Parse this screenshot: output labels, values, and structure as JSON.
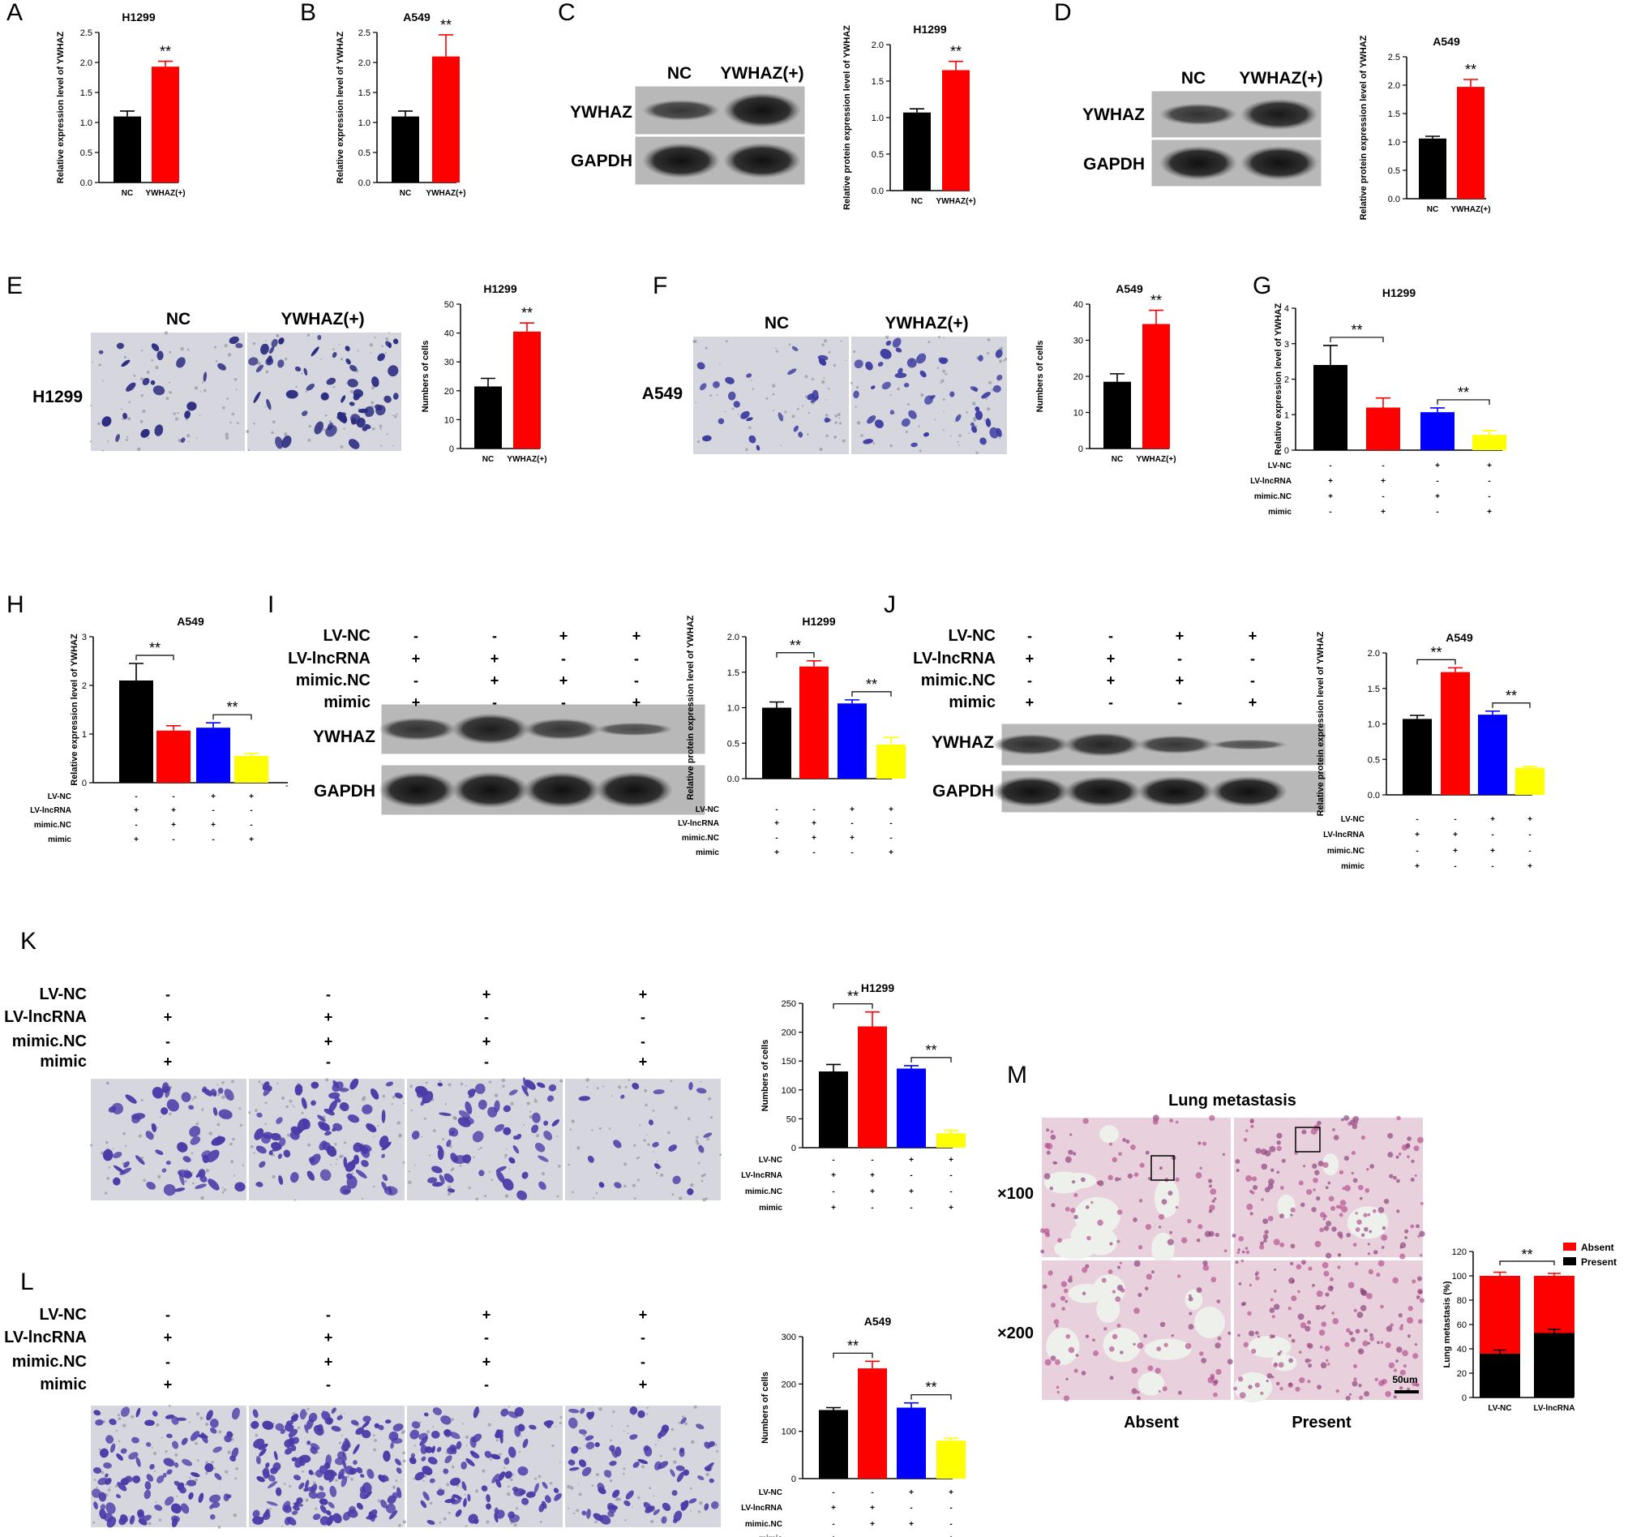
{
  "panels": {
    "A": "A",
    "B": "B",
    "C": "C",
    "D": "D",
    "E": "E",
    "F": "F",
    "G": "G",
    "H": "H",
    "I": "I",
    "J": "J",
    "K": "K",
    "L": "L",
    "M": "M"
  },
  "colors": {
    "NC": "#000000",
    "YWHAZ": "#ff0000",
    "g1": "#000000",
    "g2": "#ff0000",
    "g3": "#0000ff",
    "g4": "#ffff00",
    "absent": "#ff0000",
    "present": "#000000",
    "stain": "#4a3aa8",
    "histo": "#d98aa8"
  },
  "blots": {
    "C": {
      "cols": [
        "NC",
        "YWHAZ(+)"
      ],
      "rows": [
        "YWHAZ",
        "GAPDH"
      ]
    },
    "D": {
      "cols": [
        "NC",
        "YWHAZ(+)"
      ],
      "rows": [
        "YWHAZ",
        "GAPDH"
      ]
    },
    "I": {
      "rows": [
        "YWHAZ",
        "GAPDH"
      ],
      "stray": "-"
    },
    "J": {
      "rows": [
        "YWHAZ",
        "GAPDH"
      ]
    }
  },
  "images": {
    "E": {
      "cols": [
        "NC",
        "YWHAZ(+)"
      ],
      "row": "H1299"
    },
    "F": {
      "cols": [
        "NC",
        "YWHAZ(+)"
      ],
      "row": "A549"
    },
    "M": {
      "title": "Lung metastasis",
      "rows": [
        "×100",
        "×200"
      ],
      "cols": [
        "Absent",
        "Present"
      ],
      "scalebar": "50um"
    }
  },
  "conditions": {
    "labels": [
      "LV-NC",
      "LV-lncRNA",
      "mimic.NC",
      "mimic"
    ],
    "signs": [
      [
        "-",
        "-",
        "+",
        "+"
      ],
      [
        "+",
        "+",
        "-",
        "-"
      ],
      [
        "-",
        "+",
        "+",
        "-"
      ],
      [
        "+",
        "-",
        "-",
        "+"
      ]
    ],
    "signs_G": [
      [
        "-",
        "-",
        "+",
        "+"
      ],
      [
        "+",
        "+",
        "-",
        "-"
      ],
      [
        "+",
        "-",
        "+",
        "-"
      ],
      [
        "-",
        "+",
        "-",
        "+"
      ]
    ]
  },
  "chart_data": [
    {
      "id": "A",
      "type": "bar",
      "title": "H1299",
      "ylabel": "Relative expression level of YWHAZ",
      "categories": [
        "NC",
        "YWHAZ(+)"
      ],
      "values": [
        1.1,
        1.93
      ],
      "errors": [
        0.09,
        0.09
      ],
      "ylim": [
        0,
        2.5
      ],
      "yticks": [
        "0.0",
        "0.5",
        "1.0",
        "1.5",
        "2.0",
        "2.5"
      ],
      "annotation": "**"
    },
    {
      "id": "B",
      "type": "bar",
      "title": "A549",
      "ylabel": "Relative expression level of YWHAZ",
      "categories": [
        "NC",
        "YWHAZ(+)"
      ],
      "values": [
        1.1,
        2.1
      ],
      "errors": [
        0.09,
        0.36
      ],
      "ylim": [
        0,
        2.5
      ],
      "yticks": [
        "0.0",
        "0.5",
        "1.0",
        "1.5",
        "2.0",
        "2.5"
      ],
      "annotation": "**"
    },
    {
      "id": "C",
      "type": "bar",
      "title": "H1299",
      "ylabel": "Relative protein expression level of YWHAZ",
      "categories": [
        "NC",
        "YWHAZ(+)"
      ],
      "values": [
        1.07,
        1.65
      ],
      "errors": [
        0.05,
        0.12
      ],
      "ylim": [
        0,
        2.0
      ],
      "yticks": [
        "0.0",
        "0.5",
        "1.0",
        "1.5",
        "2.0"
      ],
      "annotation": "**"
    },
    {
      "id": "D",
      "type": "bar",
      "title": "A549",
      "ylabel": "Relative protein expression level of YWHAZ",
      "categories": [
        "NC",
        "YWHAZ(+)"
      ],
      "values": [
        1.06,
        1.97
      ],
      "errors": [
        0.04,
        0.13
      ],
      "ylim": [
        0,
        2.5
      ],
      "yticks": [
        "0.0",
        "0.5",
        "1.0",
        "1.5",
        "2.0",
        "2.5"
      ],
      "annotation": "**"
    },
    {
      "id": "E",
      "type": "bar",
      "title": "H1299",
      "ylabel": "Numbers of cells",
      "categories": [
        "NC",
        "YWHAZ(+)"
      ],
      "values": [
        21.5,
        40.5
      ],
      "errors": [
        2.8,
        3.0
      ],
      "ylim": [
        0,
        50
      ],
      "yticks": [
        "0",
        "10",
        "20",
        "30",
        "40",
        "50"
      ],
      "annotation": "**"
    },
    {
      "id": "F",
      "type": "bar",
      "title": "A549",
      "ylabel": "Numbers of cells",
      "categories": [
        "NC",
        "YWHAZ(+)"
      ],
      "values": [
        18.5,
        34.5
      ],
      "errors": [
        2.2,
        3.8
      ],
      "ylim": [
        0,
        40
      ],
      "yticks": [
        "0",
        "10",
        "20",
        "30",
        "40"
      ],
      "annotation": "**"
    },
    {
      "id": "G",
      "type": "bar",
      "title": "H1299",
      "ylabel": "Relative expression level of YWHAZ",
      "values": [
        2.4,
        1.2,
        1.07,
        0.43
      ],
      "errors": [
        0.55,
        0.27,
        0.12,
        0.12
      ],
      "ylim": [
        0,
        4
      ],
      "yticks": [
        "0",
        "1",
        "2",
        "3",
        "4"
      ],
      "annotation": "**"
    },
    {
      "id": "H",
      "type": "bar",
      "title": "A549",
      "ylabel": "Relative expression level of YWHAZ",
      "values": [
        2.1,
        1.07,
        1.13,
        0.55
      ],
      "errors": [
        0.35,
        0.1,
        0.1,
        0.05
      ],
      "ylim": [
        0,
        3
      ],
      "yticks": [
        "0",
        "1",
        "2",
        "3"
      ],
      "annotation": "**"
    },
    {
      "id": "I",
      "type": "bar",
      "title": "H1299",
      "ylabel": "Relative protein expression level of YWHAZ",
      "values": [
        1.0,
        1.58,
        1.06,
        0.48
      ],
      "errors": [
        0.08,
        0.08,
        0.05,
        0.1
      ],
      "ylim": [
        0,
        2.0
      ],
      "yticks": [
        "0.0",
        "0.5",
        "1.0",
        "1.5",
        "2.0"
      ],
      "annotation": "**"
    },
    {
      "id": "J",
      "type": "bar",
      "title": "A549",
      "ylabel": "Relative protein expression level of YWHAZ",
      "values": [
        1.07,
        1.73,
        1.13,
        0.38
      ],
      "errors": [
        0.05,
        0.06,
        0.05,
        0.02
      ],
      "ylim": [
        0,
        2.0
      ],
      "yticks": [
        "0.0",
        "0.5",
        "1.0",
        "1.5",
        "2.0"
      ],
      "annotation": "**"
    },
    {
      "id": "K",
      "type": "bar",
      "title": "H1299",
      "ylabel": "Numbers of cells",
      "values": [
        132,
        210,
        137,
        25
      ],
      "errors": [
        12,
        25,
        5,
        5
      ],
      "ylim": [
        0,
        250
      ],
      "yticks": [
        "0",
        "50",
        "100",
        "150",
        "200",
        "250"
      ],
      "annotation": "**"
    },
    {
      "id": "L",
      "type": "bar",
      "title": "A549",
      "ylabel": "Numbers of cells",
      "values": [
        145,
        233,
        150,
        80
      ],
      "errors": [
        5,
        15,
        10,
        5
      ],
      "ylim": [
        0,
        300
      ],
      "yticks": [
        "0",
        "100",
        "200",
        "300"
      ],
      "annotation": "**"
    },
    {
      "id": "M",
      "type": "bar",
      "stacked": true,
      "ylabel": "Lung metastasis (%)",
      "categories": [
        "LV-NC",
        "LV-lncRNA"
      ],
      "series": [
        {
          "name": "Present",
          "values": [
            36,
            53
          ],
          "errors": [
            3,
            3
          ]
        },
        {
          "name": "Absent",
          "values": [
            64,
            47
          ],
          "errors": [
            3,
            2
          ]
        }
      ],
      "ylim": [
        0,
        120
      ],
      "yticks": [
        "0",
        "20",
        "40",
        "60",
        "80",
        "100",
        "120"
      ],
      "annotation": "**"
    }
  ]
}
